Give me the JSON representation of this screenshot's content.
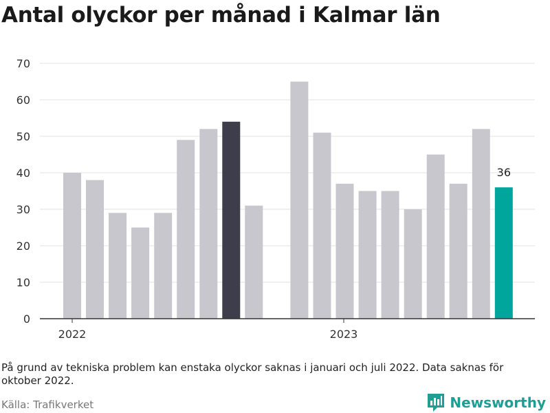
{
  "title": "Antal olyckor per månad i Kalmar län",
  "note": "På grund av tekniska problem kan enstaka olyckor saknas i januari och juli 2022. Data saknas för oktober 2022.",
  "source": "Källa: Trafikverket",
  "brand": {
    "name": "Newsworthy",
    "logo_icon": "bar-chart-logo-icon"
  },
  "colors": {
    "default_bar": "#c8c7ce",
    "highlight_bar": "#3d3d4b",
    "latest_bar": "#00a59b",
    "grid": "#e3e3e3",
    "axis": "#333333",
    "brand": "#1f9e96"
  },
  "chart_data": {
    "type": "bar",
    "title": "Antal olyckor per månad i Kalmar län",
    "xlabel": "",
    "ylabel": "",
    "ylim": [
      0,
      70
    ],
    "yticks": [
      0,
      10,
      20,
      30,
      40,
      50,
      60,
      70
    ],
    "grid": true,
    "x_tick_labels": [
      "2022",
      "2023"
    ],
    "categories": [
      "2022-01",
      "2022-02",
      "2022-03",
      "2022-04",
      "2022-05",
      "2022-06",
      "2022-07",
      "2022-08",
      "2022-09",
      "2022-10",
      "2022-11",
      "2022-12",
      "2023-01",
      "2023-02",
      "2023-03",
      "2023-04",
      "2023-05",
      "2023-06",
      "2023-07",
      "2023-08",
      "2023-09",
      "2023-10",
      "2023-11",
      "2023-12"
    ],
    "values": [
      40,
      38,
      29,
      25,
      29,
      49,
      52,
      54,
      31,
      null,
      65,
      51,
      37,
      35,
      35,
      30,
      45,
      37,
      52,
      36,
      null,
      null,
      null,
      null
    ],
    "highlight_index": 7,
    "latest_index": 19,
    "data_labels": [
      {
        "index": 19,
        "text": "36"
      }
    ]
  }
}
